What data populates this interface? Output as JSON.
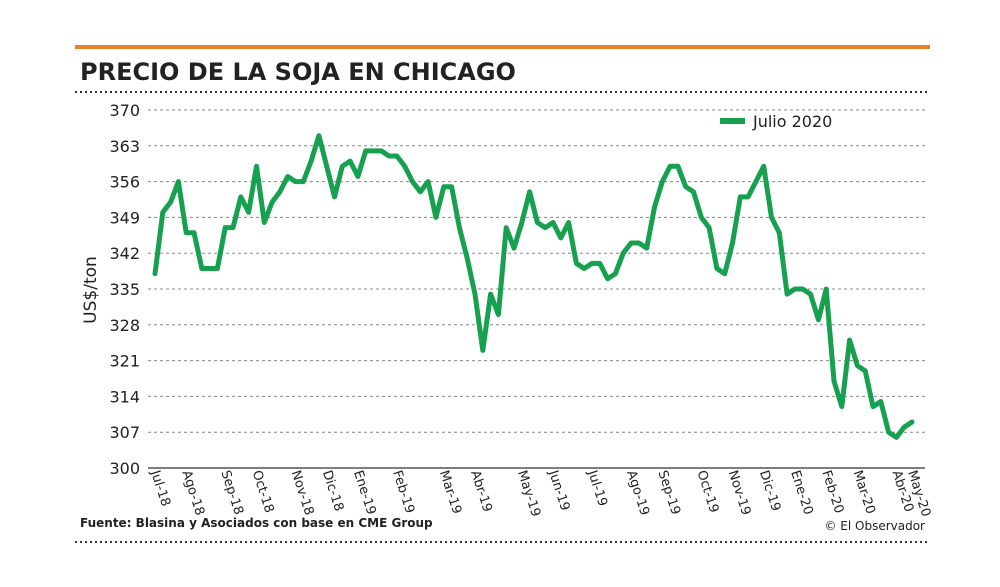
{
  "chart_data": {
    "type": "line",
    "title": "PRECIO DE LA SOJA EN CHICAGO",
    "ylabel": "US$/ton",
    "source": "Fuente: Blasina y Asociados con base en CME Group",
    "credit": "© El Observador",
    "legend": "top-right",
    "grid": true,
    "ylim": [
      300,
      370
    ],
    "yticks": [
      300,
      307,
      314,
      321,
      328,
      335,
      342,
      349,
      356,
      363,
      370
    ],
    "categories": [
      "Jul-18",
      null,
      null,
      null,
      "Ago-18",
      null,
      null,
      null,
      null,
      "Sep-18",
      null,
      null,
      null,
      "Oct-18",
      null,
      null,
      null,
      null,
      "Nov-18",
      null,
      null,
      null,
      "Dic-18",
      null,
      null,
      null,
      "Ene-19",
      null,
      null,
      null,
      null,
      "Feb-19",
      null,
      null,
      null,
      null,
      null,
      "Mar-19",
      null,
      null,
      null,
      "Abr-19",
      null,
      null,
      null,
      null,
      null,
      "May-19",
      null,
      null,
      null,
      "Jun-19",
      null,
      null,
      null,
      null,
      "Jul-19",
      null,
      null,
      null,
      null,
      "Ago-19",
      null,
      null,
      null,
      "Sep-19",
      null,
      null,
      null,
      null,
      "Oct-19",
      null,
      null,
      null,
      "Nov-19",
      null,
      null,
      null,
      "Dic-19",
      null,
      null,
      null,
      "Ene-20",
      null,
      null,
      null,
      "Feb-20",
      null,
      null,
      null,
      "Mar-20",
      null,
      null,
      null,
      null,
      "Abr-20",
      null,
      "May-20"
    ],
    "series": [
      {
        "name": "Julio 2020",
        "color": "#17a04f",
        "values": [
          338,
          350,
          352,
          356,
          346,
          346,
          339,
          339,
          339,
          347,
          347,
          353,
          350,
          359,
          348,
          352,
          354,
          357,
          356,
          356,
          360,
          365,
          359,
          353,
          359,
          360,
          357,
          362,
          362,
          362,
          361,
          361,
          359,
          356,
          354,
          356,
          349,
          355,
          355,
          347,
          341,
          334,
          323,
          334,
          330,
          347,
          343,
          348,
          354,
          348,
          347,
          348,
          345,
          348,
          340,
          339,
          340,
          340,
          337,
          338,
          342,
          344,
          344,
          343,
          351,
          356,
          359,
          359,
          355,
          354,
          349,
          347,
          339,
          338,
          344,
          353,
          353,
          356,
          359,
          349,
          346,
          334,
          335,
          335,
          334,
          329,
          335,
          317,
          312,
          325,
          320,
          319,
          312,
          313,
          307,
          306,
          308,
          309
        ]
      }
    ]
  }
}
